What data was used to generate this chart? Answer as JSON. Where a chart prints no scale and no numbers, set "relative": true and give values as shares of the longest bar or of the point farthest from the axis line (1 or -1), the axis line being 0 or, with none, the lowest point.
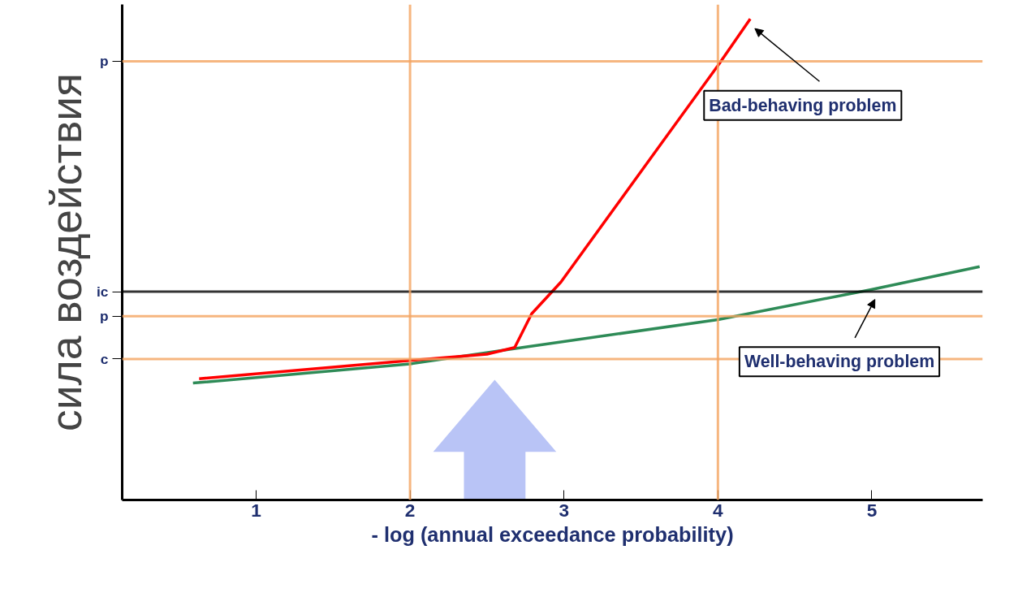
{
  "chart_data": {
    "type": "line",
    "relative": true,
    "xlabel": "- log (annual exceedance probability)",
    "ylabel": "сила воздействия",
    "xlim": [
      0.13,
      5.72
    ],
    "xticks": [
      1,
      2,
      3,
      4,
      5
    ],
    "grid": false,
    "marker": "none",
    "line_style": "solid",
    "series": [
      {
        "color": "#2e8b57",
        "x": [
          0.59,
          2,
          2.73,
          4,
          4.99,
          5.7
        ],
        "values": [
          0.243,
          0.283,
          0.317,
          0.375,
          0.437,
          0.485
        ]
      },
      {
        "color": "#ff0000",
        "x": [
          0.63,
          2,
          2.5,
          2.68,
          2.79,
          2.98,
          3.63,
          4,
          4.21
        ],
        "values": [
          0.252,
          0.29,
          0.303,
          0.317,
          0.387,
          0.453,
          0.74,
          0.903,
          1.0
        ]
      }
    ],
    "ref_lines": [
      {
        "axis": "y",
        "value": 0.912,
        "label": "p",
        "color": "#f4a460"
      },
      {
        "axis": "y",
        "value": 0.433,
        "label": "ic",
        "color": "#000000"
      },
      {
        "axis": "y",
        "value": 0.382,
        "label": "p",
        "color": "#f4a460"
      },
      {
        "axis": "y",
        "value": 0.293,
        "label": "c",
        "color": "#f4a460"
      },
      {
        "axis": "x",
        "value": 2,
        "label": null,
        "color": "#f4a460"
      },
      {
        "axis": "x",
        "value": 4,
        "label": null,
        "color": "#f4a460"
      }
    ],
    "annotations": [
      "Bad-behaving problem",
      "Well-behaving problem"
    ]
  }
}
